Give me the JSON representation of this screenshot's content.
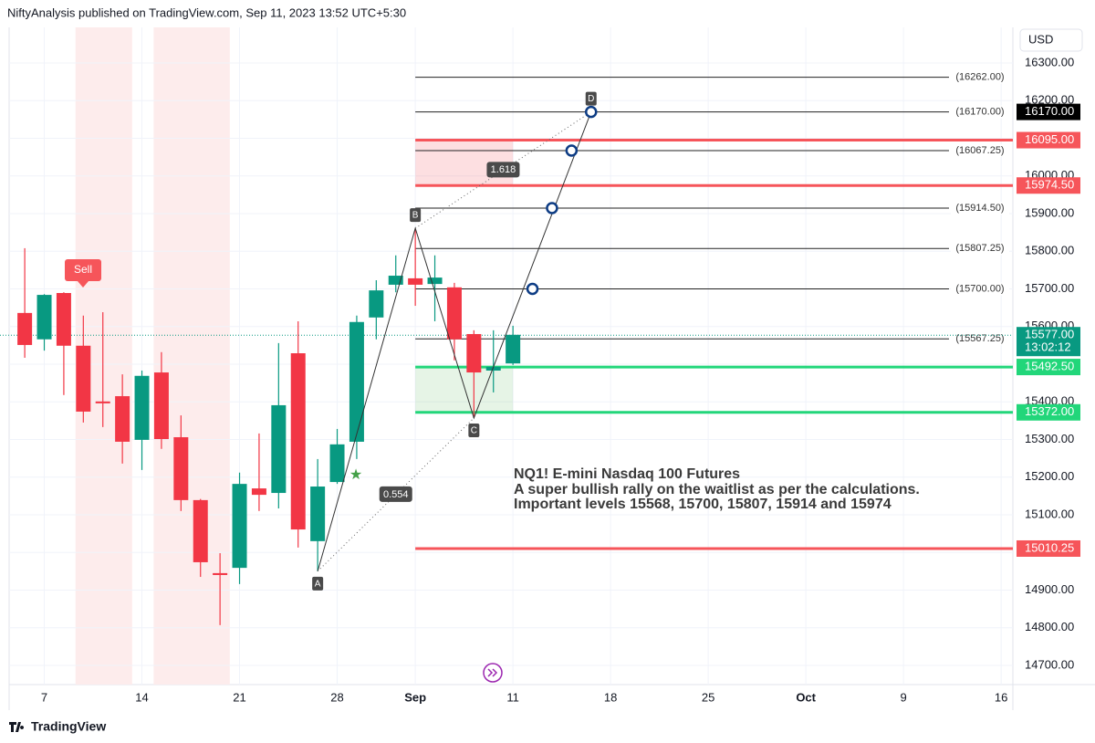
{
  "header": "NiftyAnalysis published on TradingView.com, Sep 11, 2023 13:52 UTC+5:30",
  "currency": "USD",
  "footer": "TradingView",
  "chart_data": {
    "type": "candlestick",
    "xlim": [
      -1.8,
      49.6
    ],
    "ylim": [
      14649,
      16394.5
    ],
    "xticks": [
      {
        "value": 0,
        "label": "7"
      },
      {
        "value": 5,
        "label": "14"
      },
      {
        "value": 10,
        "label": "21"
      },
      {
        "value": 15,
        "label": "28"
      },
      {
        "value": 19,
        "label": "Sep"
      },
      {
        "value": 24,
        "label": "11"
      },
      {
        "value": 29,
        "label": "18"
      },
      {
        "value": 34,
        "label": "25"
      },
      {
        "value": 39,
        "label": "Oct"
      },
      {
        "value": 44,
        "label": "9"
      },
      {
        "value": 49,
        "label": "16"
      }
    ],
    "yticks": [
      {
        "value": 16300,
        "label": "16300.00"
      },
      {
        "value": 16200,
        "label": "16200.00"
      },
      {
        "value": 16100,
        "label": "16100.00"
      },
      {
        "value": 16000,
        "label": "16000.00"
      },
      {
        "value": 15900,
        "label": "15900.00"
      },
      {
        "value": 15800,
        "label": "15800.00"
      },
      {
        "value": 15700,
        "label": "15700.00"
      },
      {
        "value": 15600,
        "label": "15600.00"
      },
      {
        "value": 15500,
        "label": "15500.00"
      },
      {
        "value": 15400,
        "label": "15400.00"
      },
      {
        "value": 15300,
        "label": "15300.00"
      },
      {
        "value": 15200,
        "label": "15200.00"
      },
      {
        "value": 15100,
        "label": "15100.00"
      },
      {
        "value": 15000,
        "label": "15000.00"
      },
      {
        "value": 14900,
        "label": "14900.00"
      },
      {
        "value": 14800,
        "label": "14800.00"
      },
      {
        "value": 14700,
        "label": "14700.00"
      }
    ],
    "grid": true,
    "up_color": "#089981",
    "down_color": "#f23645",
    "x": [
      -1,
      0,
      1,
      2,
      3,
      4,
      5,
      6,
      7,
      8,
      9,
      10,
      11,
      12,
      13,
      14,
      15,
      16,
      17,
      18,
      19,
      20,
      21,
      22,
      23,
      24
    ],
    "open": [
      15636,
      15566,
      15689,
      15549,
      15401,
      15415,
      15299,
      15478,
      15306,
      15139,
      14945,
      14959,
      15170,
      15158,
      15529,
      15030,
      15187,
      15294,
      15624,
      15711,
      15728,
      15713,
      15704,
      15580,
      15483,
      15502
    ],
    "high": [
      15808,
      15686,
      15691,
      15629,
      15638,
      15473,
      15483,
      15532,
      15364,
      15142,
      14998,
      15212,
      15316,
      15556,
      15614,
      15248,
      15328,
      15629,
      15723,
      15789,
      15861,
      15789,
      15716,
      15590,
      15590,
      15602
    ],
    "low": [
      15517,
      15536,
      15418,
      15345,
      15333,
      15236,
      15219,
      15275,
      15110,
      14935,
      14807,
      14916,
      15110,
      15117,
      15013,
      14950,
      15182,
      15248,
      15566,
      15691,
      15655,
      15614,
      15510,
      15357,
      15425,
      15498
    ],
    "close": [
      15551,
      15684,
      15549,
      15374,
      15396,
      15294,
      15469,
      15301,
      15139,
      14974,
      14940,
      15182,
      15153,
      15391,
      15061,
      15175,
      15287,
      15612,
      15696,
      15735,
      15711,
      15730,
      15566,
      15478,
      15493,
      15578
    ],
    "shaded_ranges": [
      [
        1.6,
        4.5
      ],
      [
        5.6,
        9.5
      ]
    ],
    "shade_color": "#fdecec",
    "levels": [
      {
        "value": 16262,
        "label": "(16262.00)"
      },
      {
        "value": 16170,
        "label": "(16170.00)"
      },
      {
        "value": 16067.25,
        "label": "(16067.25)"
      },
      {
        "value": 15914.5,
        "label": "(15914.50)"
      },
      {
        "value": 15807.25,
        "label": "(15807.25)"
      },
      {
        "value": 15700,
        "label": "(15700.00)"
      },
      {
        "value": 15567.25,
        "label": "(15567.25)"
      }
    ],
    "levels_x": [
      19,
      45.2
    ],
    "red_lines": [
      {
        "value": 16095,
        "label": "16095.00"
      },
      {
        "value": 15974.5,
        "label": "15974.50"
      },
      {
        "value": 15010.25,
        "label": "15010.25"
      }
    ],
    "green_lines": [
      {
        "value": 15492.5,
        "label": "15492.50"
      },
      {
        "value": 15372,
        "label": "15372.00"
      }
    ],
    "zones_x": [
      19,
      24
    ],
    "marked_level": {
      "value": 16170,
      "label": "16170.00"
    },
    "current_price": {
      "value": 15577,
      "label": "15577.00",
      "countdown": "13:02:12"
    },
    "pattern": [
      {
        "label": "A",
        "x": 14,
        "y": 14950
      },
      {
        "label": "B",
        "x": 19,
        "y": 15861
      },
      {
        "label": "C",
        "x": 22,
        "y": 15357
      },
      {
        "label": "D",
        "x": 28,
        "y": 16170
      }
    ],
    "ratios": [
      "1.618",
      "0.554"
    ],
    "targets": {
      "x": [
        25,
        26,
        27,
        28
      ],
      "y": [
        15700,
        15914.5,
        16067.25,
        16170
      ]
    },
    "signal": "Sell",
    "annotation": [
      "NQ1! E-mini Nasdaq 100 Futures",
      "A super bullish rally on the waitlist as per the calculations.",
      "Important levels 15568, 15700, 15807, 15914 and 15974"
    ]
  }
}
